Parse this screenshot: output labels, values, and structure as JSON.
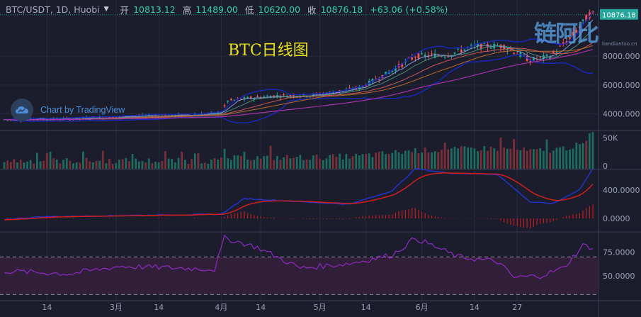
{
  "header": {
    "symbol": "BTC/USDT, 1D, Huobi",
    "open_label": "开",
    "open_value": "10813.12",
    "high_label": "高",
    "high_value": "11489.00",
    "low_label": "低",
    "low_value": "10620.00",
    "close_label": "收",
    "close_value": "10876.18",
    "change_value": "+63.06 (+0.58%)"
  },
  "overlay_title": "BTC日线图",
  "tv_badge": "Chart by TradingView",
  "watermark": {
    "text": "链阿比",
    "url": "liandiantoo.cn"
  },
  "colors": {
    "background": "#1b1d2c",
    "up": "#26a69a",
    "down": "#ef5350",
    "bollinger": "#1a27b8",
    "macd_line": "#2134c9",
    "signal_line": "#d31e1e",
    "rsi_line": "#8f2bc4",
    "rsi_band": "#3a1f3f",
    "title": "#e8e01a"
  },
  "chart_data": [
    {
      "type": "candlestick",
      "pane": "price",
      "price_axis_ticks": [
        "4000.000",
        "6000.000",
        "8000.000"
      ],
      "ylim": [
        2900,
        11600
      ],
      "last_price_label": "10876.18",
      "ohlc_anchors": [
        {
          "day": 0,
          "close": 3600
        },
        {
          "day": 20,
          "close": 3650
        },
        {
          "day": 36,
          "close": 3800
        },
        {
          "day": 58,
          "close": 3950
        },
        {
          "day": 66,
          "close": 4100
        },
        {
          "day": 68,
          "close": 4900
        },
        {
          "day": 75,
          "close": 5100
        },
        {
          "day": 82,
          "close": 5250
        },
        {
          "day": 94,
          "close": 5300
        },
        {
          "day": 100,
          "close": 5500
        },
        {
          "day": 108,
          "close": 5800
        },
        {
          "day": 118,
          "close": 7000
        },
        {
          "day": 125,
          "close": 8000
        },
        {
          "day": 135,
          "close": 8100
        },
        {
          "day": 143,
          "close": 8700
        },
        {
          "day": 152,
          "close": 8700
        },
        {
          "day": 160,
          "close": 7700
        },
        {
          "day": 166,
          "close": 8000
        },
        {
          "day": 172,
          "close": 9200
        },
        {
          "day": 178,
          "close": 10880
        }
      ],
      "indicators": [
        "MA 5",
        "MA 10",
        "MA 20",
        "MA 30",
        "MA 60",
        "Bollinger Bands 20"
      ]
    },
    {
      "type": "bar",
      "pane": "volume",
      "axis_ticks": [
        "50K",
        "0"
      ],
      "ylim": [
        0,
        60000
      ]
    },
    {
      "type": "line",
      "pane": "macd",
      "axis_ticks": [
        "400.0000",
        "0.0000"
      ],
      "ylim": [
        -180,
        680
      ],
      "series": [
        {
          "values_key": "macd"
        },
        {
          "values_key": "signal"
        },
        {
          "values_key": "histogram"
        }
      ],
      "macd_anchors": [
        {
          "day": 0,
          "value": -15
        },
        {
          "day": 12,
          "value": 25
        },
        {
          "day": 66,
          "value": 60
        },
        {
          "day": 73,
          "value": 280
        },
        {
          "day": 92,
          "value": 230
        },
        {
          "day": 105,
          "value": 200
        },
        {
          "day": 118,
          "value": 390
        },
        {
          "day": 125,
          "value": 700
        },
        {
          "day": 135,
          "value": 640
        },
        {
          "day": 150,
          "value": 620
        },
        {
          "day": 160,
          "value": 230
        },
        {
          "day": 167,
          "value": 210
        },
        {
          "day": 175,
          "value": 410
        },
        {
          "day": 179,
          "value": 700
        }
      ]
    },
    {
      "type": "line",
      "pane": "rsi",
      "axis_ticks": [
        "75.0000",
        "50.0000"
      ],
      "ylim": [
        25,
        95
      ],
      "bands": [
        70,
        30
      ],
      "rsi_anchors": [
        {
          "day": 0,
          "value": 55
        },
        {
          "day": 20,
          "value": 52
        },
        {
          "day": 35,
          "value": 60
        },
        {
          "day": 64,
          "value": 57
        },
        {
          "day": 67,
          "value": 90
        },
        {
          "day": 77,
          "value": 80
        },
        {
          "day": 90,
          "value": 58
        },
        {
          "day": 105,
          "value": 63
        },
        {
          "day": 118,
          "value": 72
        },
        {
          "day": 125,
          "value": 90
        },
        {
          "day": 138,
          "value": 70
        },
        {
          "day": 150,
          "value": 65
        },
        {
          "day": 155,
          "value": 48
        },
        {
          "day": 163,
          "value": 50
        },
        {
          "day": 170,
          "value": 58
        },
        {
          "day": 176,
          "value": 82
        },
        {
          "day": 179,
          "value": 80
        }
      ]
    },
    {
      "type": "axis",
      "pane": "time",
      "time_labels": [
        {
          "day": 13,
          "label": "14"
        },
        {
          "day": 34,
          "label": "3月"
        },
        {
          "day": 47,
          "label": "14"
        },
        {
          "day": 66,
          "label": "4月"
        },
        {
          "day": 78,
          "label": "14"
        },
        {
          "day": 96,
          "label": "5月"
        },
        {
          "day": 110,
          "label": "14"
        },
        {
          "day": 127,
          "label": "6月"
        },
        {
          "day": 143,
          "label": "14"
        },
        {
          "day": 156,
          "label": "27"
        }
      ]
    }
  ]
}
